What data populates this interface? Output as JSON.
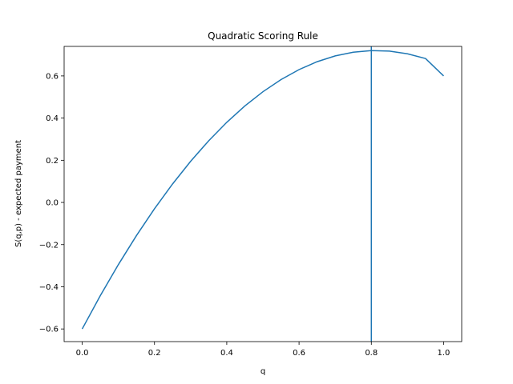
{
  "chart_data": {
    "type": "line",
    "title": "Quadratic Scoring Rule",
    "xlabel": "q",
    "ylabel": "S(q,p) - expected payment",
    "xlim": [
      -0.05,
      1.05
    ],
    "ylim": [
      -0.66,
      0.74
    ],
    "x_ticks": [
      0.0,
      0.2,
      0.4,
      0.6,
      0.8,
      1.0
    ],
    "x_tick_labels": [
      "0.0",
      "0.2",
      "0.4",
      "0.6",
      "0.8",
      "1.0"
    ],
    "y_ticks": [
      -0.6,
      -0.4,
      -0.2,
      0.0,
      0.2,
      0.4,
      0.6
    ],
    "y_tick_labels": [
      "−0.6",
      "−0.4",
      "−0.2",
      "0.0",
      "0.2",
      "0.4",
      "0.6"
    ],
    "grid": false,
    "series": [
      {
        "color": "#1f77b4",
        "x": [
          0.0,
          0.05,
          0.1,
          0.15,
          0.2,
          0.25,
          0.3,
          0.35,
          0.4,
          0.45,
          0.5,
          0.55,
          0.6,
          0.65,
          0.7,
          0.75,
          0.8,
          0.85,
          0.9,
          0.95,
          1.0
        ],
        "y": [
          -0.6,
          -0.4425,
          -0.295,
          -0.1575,
          -0.03,
          0.0875,
          0.195,
          0.2925,
          0.38,
          0.4575,
          0.525,
          0.5825,
          0.63,
          0.6675,
          0.695,
          0.7125,
          0.72,
          0.7175,
          0.705,
          0.6825,
          0.6
        ]
      }
    ],
    "vertical_lines": [
      {
        "x": 0.8,
        "color": "#1f77b4"
      }
    ]
  }
}
